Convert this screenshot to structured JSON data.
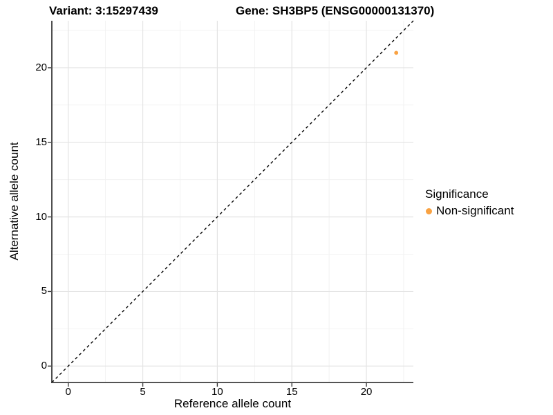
{
  "header": {
    "title_variant": "Variant: 3:15297439",
    "title_gene": "Gene: SH3BP5 (ENSG00000131370)"
  },
  "axes": {
    "x_title": "Reference allele count",
    "y_title": "Alternative allele count",
    "x_tick_labels": [
      "0",
      "5",
      "10",
      "15",
      "20"
    ],
    "y_tick_labels": [
      "0",
      "5",
      "10",
      "15",
      "20"
    ]
  },
  "legend": {
    "title": "Significance",
    "entries": [
      {
        "label": "Non-significant",
        "color": "#F9A242"
      }
    ]
  },
  "chart_data": {
    "type": "scatter",
    "title": "Variant: 3:15297439 | Gene: SH3BP5 (ENSG00000131370)",
    "xlabel": "Reference allele count",
    "ylabel": "Alternative allele count",
    "xlim": [
      -1.1,
      23.15
    ],
    "ylim": [
      -1.1,
      23.15
    ],
    "x_major_ticks": [
      0,
      5,
      10,
      15,
      20
    ],
    "y_major_ticks": [
      0,
      5,
      10,
      15,
      20
    ],
    "x_minor_ticks": [
      2.5,
      7.5,
      12.5,
      17.5,
      22.5
    ],
    "y_minor_ticks": [
      2.5,
      7.5,
      12.5,
      17.5,
      22.5
    ],
    "grid": true,
    "legend_position": "right",
    "series": [
      {
        "name": "Non-significant",
        "color": "#F9A242",
        "points": [
          {
            "x": 22,
            "y": 21
          }
        ]
      }
    ],
    "reference_line": {
      "slope": 1,
      "intercept": 0,
      "style": "dashed",
      "color": "#000000"
    },
    "colors": {
      "point": "#F9A242",
      "grid_major": "#E4E4E4",
      "grid_minor": "#F1F1F1",
      "axis_line": "#3C3C3C",
      "background": "#FFFFFF"
    }
  }
}
